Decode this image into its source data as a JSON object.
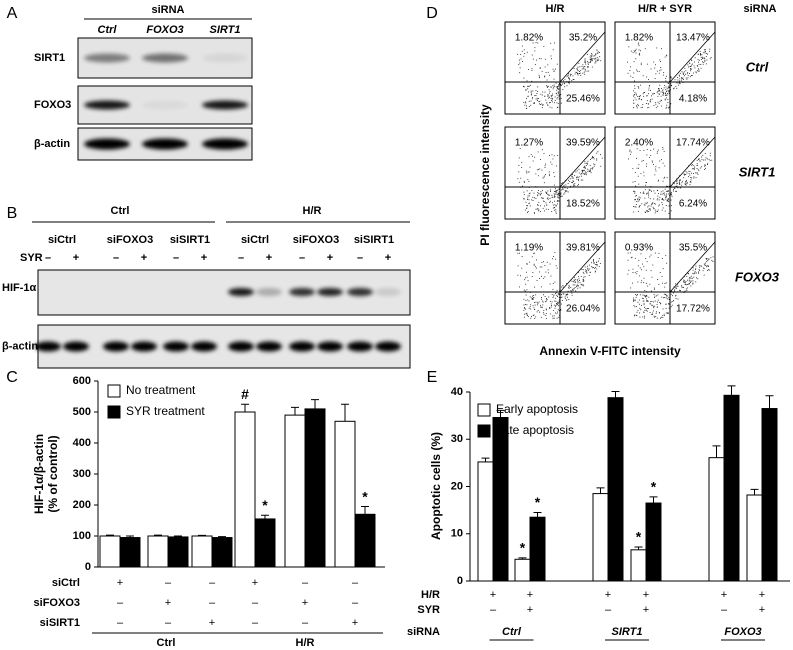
{
  "panels": {
    "A": {
      "letter": "A",
      "header": "siRNA",
      "lanes": [
        "Ctrl",
        "FOXO3",
        "SIRT1"
      ],
      "rows": [
        "SIRT1",
        "FOXO3",
        "β-actin"
      ]
    },
    "B": {
      "letter": "B",
      "groups": [
        "Ctrl",
        "H/R"
      ],
      "lanes": [
        "siCtrl",
        "siFOXO3",
        "siSIRT1",
        "siCtrl",
        "siFOXO3",
        "siSIRT1"
      ],
      "syr_label": "SYR",
      "syr": [
        "–",
        "+",
        "–",
        "+",
        "–",
        "+",
        "–",
        "+",
        "–",
        "+",
        "–",
        "+"
      ],
      "rows": [
        "HIF-1α",
        "β-actin"
      ]
    },
    "D": {
      "letter": "D",
      "columns": [
        "H/R",
        "H/R + SYR"
      ],
      "corner": "siRNA",
      "rows": [
        "Ctrl",
        "SIRT1",
        "FOXO3"
      ],
      "ylabel": "PI fluorescence intensity",
      "xlabel": "Annexin V-FITC intensity",
      "plots": [
        [
          {
            "ul": "1.82%",
            "ur": "35.2%",
            "lr": "25.46%"
          },
          {
            "ul": "1.82%",
            "ur": "13.47%",
            "lr": "4.18%"
          }
        ],
        [
          {
            "ul": "1.27%",
            "ur": "39.59%",
            "lr": "18.52%"
          },
          {
            "ul": "2.40%",
            "ur": "17.74%",
            "lr": "6.24%"
          }
        ],
        [
          {
            "ul": "1.19%",
            "ur": "39.81%",
            "lr": "26.04%"
          },
          {
            "ul": "0.93%",
            "ur": "35.5%",
            "lr": "17.72%"
          }
        ]
      ]
    }
  },
  "chart_data": [
    {
      "type": "bar",
      "letter": "C",
      "ylabel": [
        "HIF-1α/β-actin",
        "(% of control)"
      ],
      "ylim": [
        0,
        600
      ],
      "yticks": [
        0,
        100,
        200,
        300,
        400,
        500,
        600
      ],
      "series": [
        {
          "name": "No treatment",
          "color": "#ffffff",
          "values": [
            100,
            100,
            100,
            500,
            490,
            470
          ],
          "errors": [
            3,
            3,
            2,
            25,
            25,
            55
          ],
          "annotations": [
            null,
            null,
            null,
            "#",
            null,
            null
          ]
        },
        {
          "name": "SYR treatment",
          "color": "#000000",
          "values": [
            95,
            97,
            95,
            155,
            510,
            170
          ],
          "errors": [
            5,
            3,
            3,
            12,
            30,
            25
          ],
          "annotations": [
            null,
            null,
            null,
            "*",
            null,
            "*"
          ]
        }
      ],
      "rows": [
        {
          "label": "siCtrl",
          "marks": [
            "+",
            "–",
            "–",
            "+",
            "–",
            "–"
          ]
        },
        {
          "label": "siFOXO3",
          "marks": [
            "–",
            "+",
            "–",
            "–",
            "+",
            "–"
          ]
        },
        {
          "label": "siSIRT1",
          "marks": [
            "–",
            "–",
            "+",
            "–",
            "–",
            "+"
          ]
        }
      ],
      "groups": [
        "Ctrl",
        "H/R"
      ]
    },
    {
      "type": "bar",
      "letter": "E",
      "ylabel": [
        "Apoptotic cells (%)"
      ],
      "ylim": [
        0,
        40
      ],
      "yticks": [
        0,
        10,
        20,
        30,
        40
      ],
      "series": [
        {
          "name": "Early apoptosis",
          "color": "#ffffff",
          "values": [
            25.2,
            4.6,
            18.5,
            6.6,
            26.1,
            18.2
          ],
          "errors": [
            0.8,
            0.3,
            1.2,
            0.6,
            2.5,
            1.2
          ],
          "annotations": [
            null,
            "*",
            null,
            "*",
            null,
            null
          ]
        },
        {
          "name": "Late apoptosis",
          "color": "#000000",
          "values": [
            34.6,
            13.5,
            38.8,
            16.5,
            39.3,
            36.5
          ],
          "errors": [
            1.5,
            1,
            1.3,
            1.3,
            2,
            2.7
          ],
          "annotations": [
            null,
            "*",
            null,
            "*",
            null,
            null
          ]
        }
      ],
      "rows": [
        {
          "label": "H/R",
          "marks": [
            "+",
            "+",
            "+",
            "+",
            "+",
            "+"
          ]
        },
        {
          "label": "SYR",
          "marks": [
            "–",
            "+",
            "–",
            "+",
            "–",
            "+"
          ]
        }
      ],
      "groups_label": "siRNA",
      "groups": [
        "Ctrl",
        "SIRT1",
        "FOXO3"
      ]
    }
  ]
}
